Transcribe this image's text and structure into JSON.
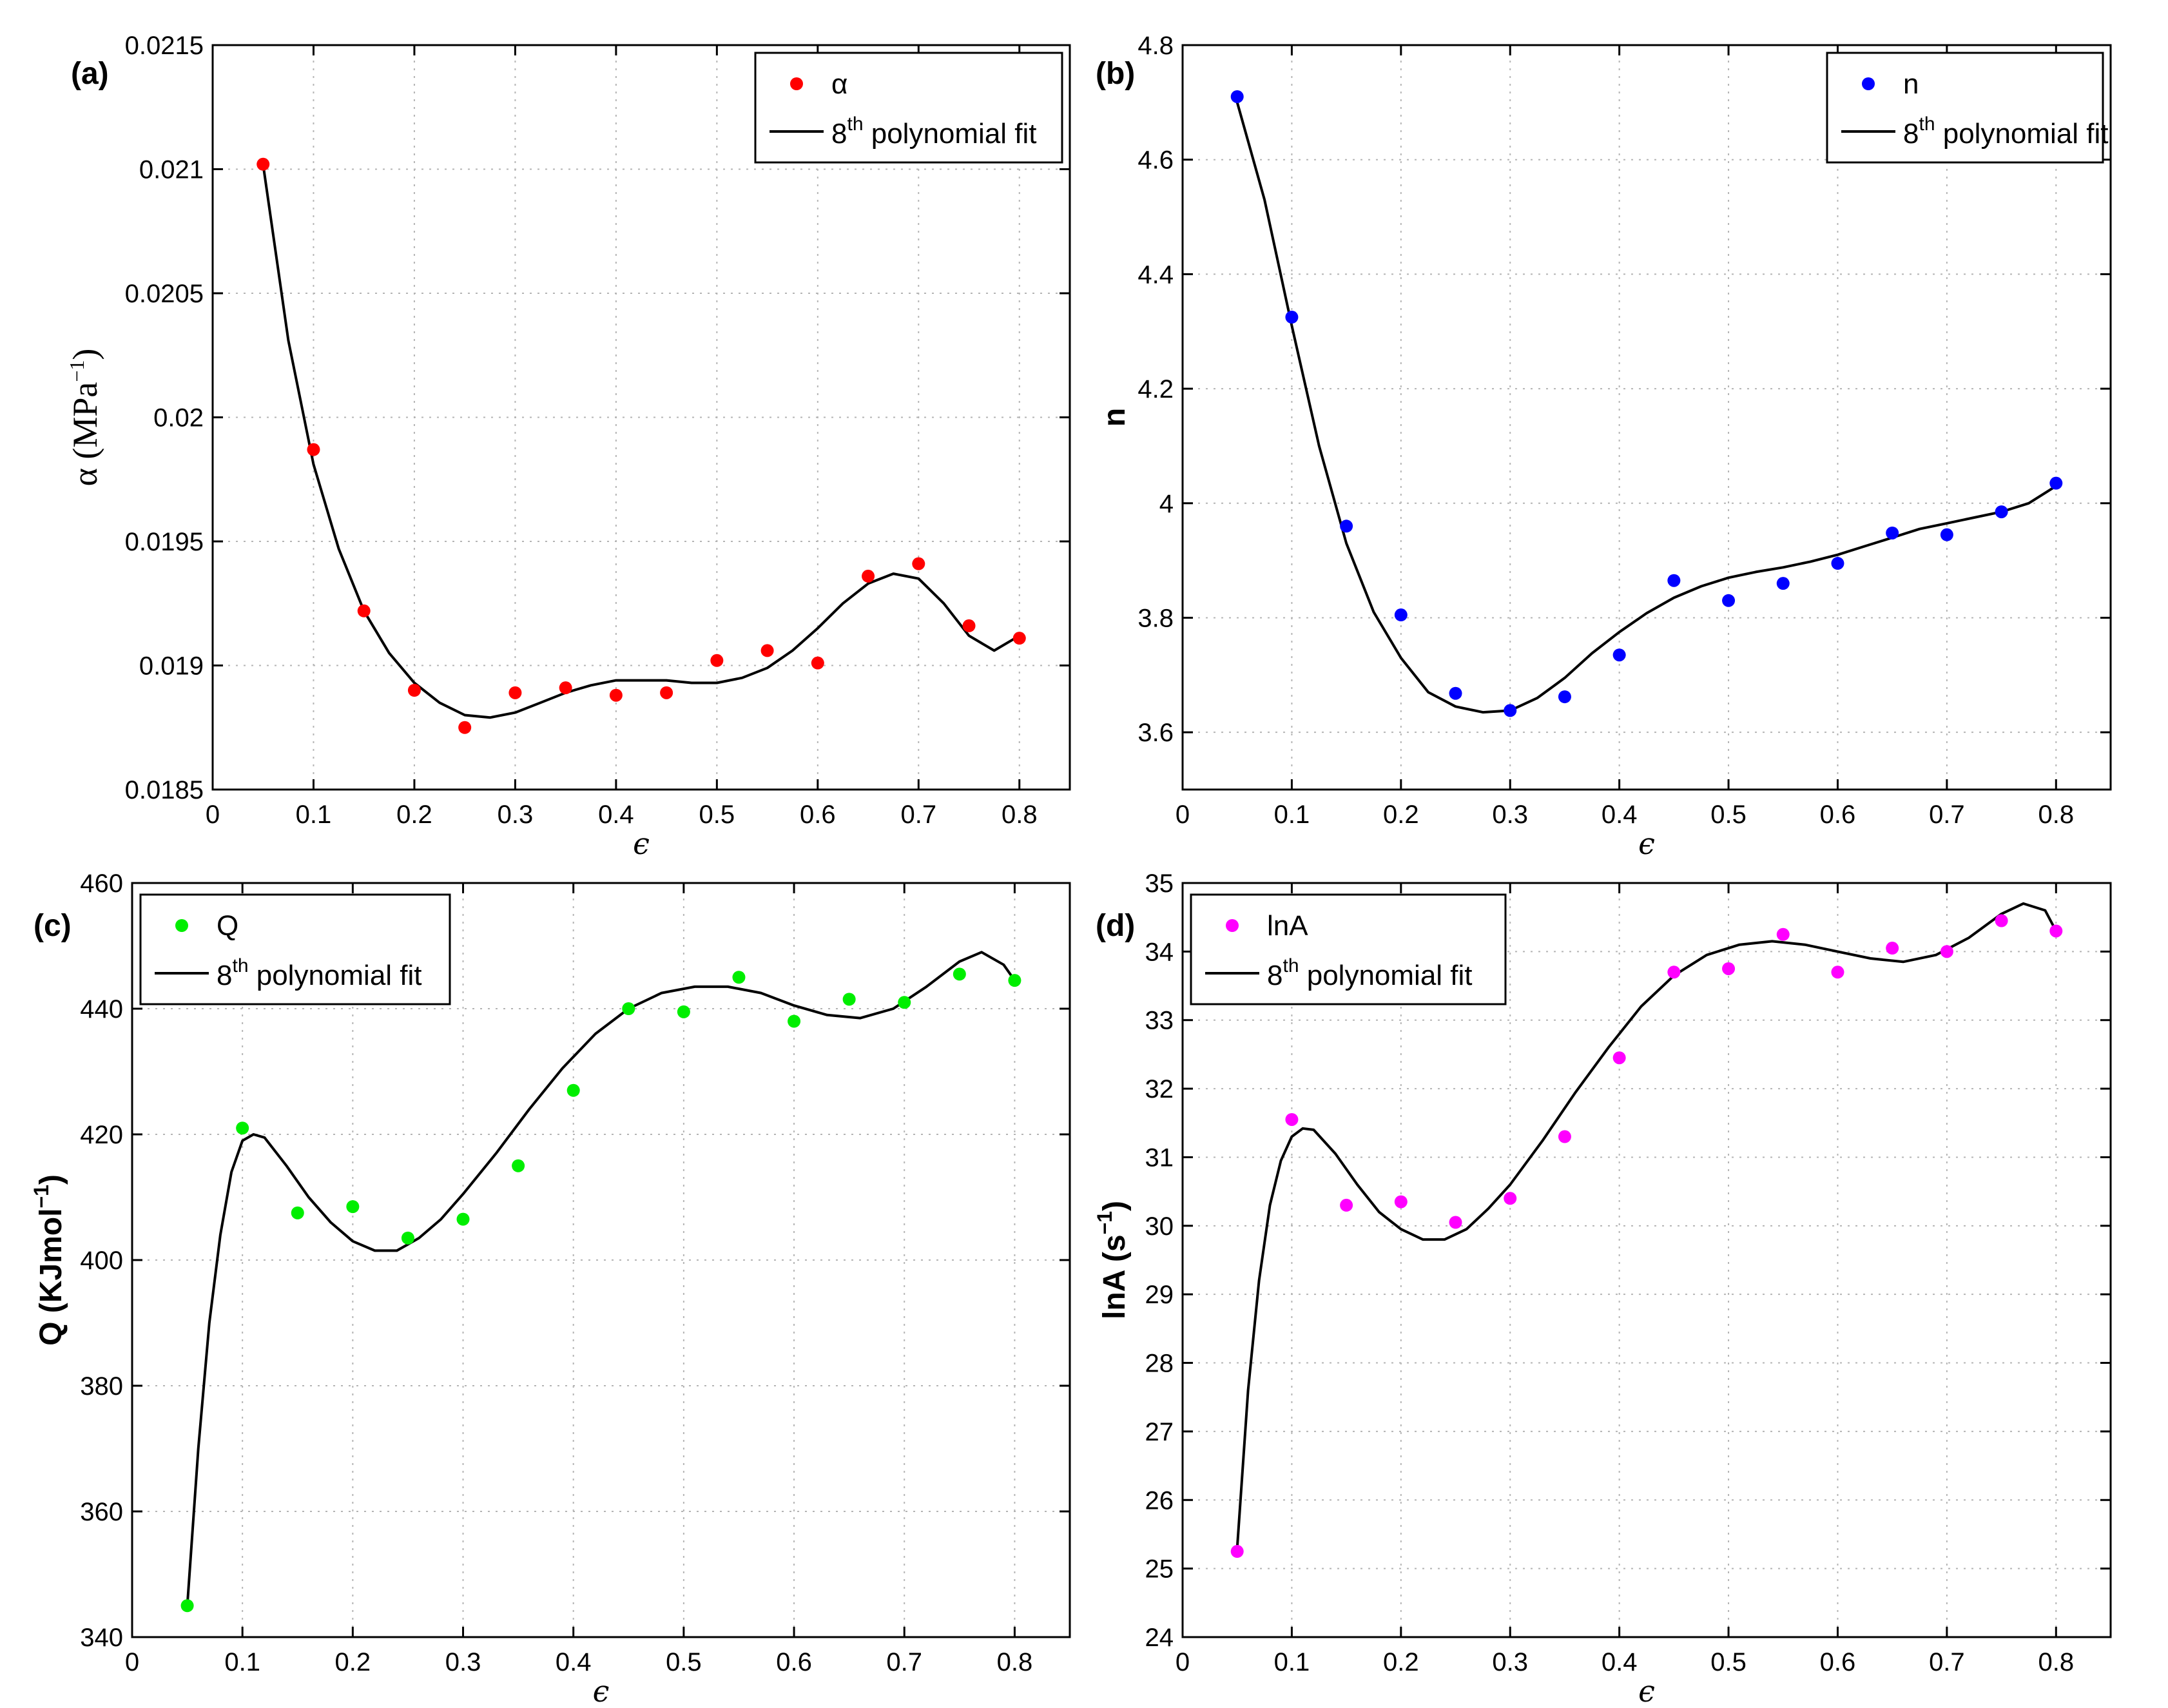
{
  "chart_data": [
    {
      "type": "scatter",
      "panel_label": "(a)",
      "xlabel": "ϵ",
      "ylabel_main": "α (MPa",
      "ylabel_sup": "−1",
      "ylabel_tail": ")",
      "xlim": [
        0,
        0.85
      ],
      "ylim": [
        0.0185,
        0.0215
      ],
      "xticks": [
        0,
        0.1,
        0.2,
        0.3,
        0.4,
        0.5,
        0.6,
        0.7,
        0.8
      ],
      "yticks": [
        0.0185,
        0.019,
        0.0195,
        0.02,
        0.0205,
        0.021,
        0.0215
      ],
      "xtick_labels": [
        "0",
        "0.1",
        "0.2",
        "0.3",
        "0.4",
        "0.5",
        "0.6",
        "0.7",
        "0.8"
      ],
      "ytick_labels": [
        "0.0185",
        "0.019",
        "0.0195",
        "0.02",
        "0.0205",
        "0.021",
        "0.0215"
      ],
      "grid": true,
      "legend_position": "top-right",
      "points_color": "#ff0000",
      "legend_points": "α",
      "legend_fit_pre": "8",
      "legend_fit_sup": "th",
      "legend_fit_post": " polynomial fit",
      "x": [
        0.05,
        0.1,
        0.15,
        0.2,
        0.25,
        0.3,
        0.35,
        0.4,
        0.45,
        0.5,
        0.55,
        0.6,
        0.65,
        0.7,
        0.75,
        0.8
      ],
      "y": [
        0.02102,
        0.01987,
        0.01922,
        0.0189,
        0.01875,
        0.01889,
        0.01891,
        0.01888,
        0.01889,
        0.01902,
        0.01906,
        0.01901,
        0.01936,
        0.01941,
        0.01916,
        0.01911
      ],
      "fit_x": [
        0.05,
        0.075,
        0.1,
        0.125,
        0.15,
        0.175,
        0.2,
        0.225,
        0.25,
        0.275,
        0.3,
        0.325,
        0.35,
        0.375,
        0.4,
        0.425,
        0.45,
        0.475,
        0.5,
        0.525,
        0.55,
        0.575,
        0.6,
        0.625,
        0.65,
        0.675,
        0.7,
        0.725,
        0.75,
        0.775,
        0.8
      ],
      "fit_y": [
        0.02102,
        0.02031,
        0.01981,
        0.01947,
        0.01922,
        0.01905,
        0.01893,
        0.01885,
        0.0188,
        0.01879,
        0.01881,
        0.01885,
        0.01889,
        0.01892,
        0.01894,
        0.01894,
        0.01894,
        0.01893,
        0.01893,
        0.01895,
        0.01899,
        0.01906,
        0.01915,
        0.01925,
        0.01933,
        0.01937,
        0.01935,
        0.01925,
        0.01912,
        0.01906,
        0.01912
      ]
    },
    {
      "type": "scatter",
      "panel_label": "(b)",
      "xlabel": "ϵ",
      "ylabel_main": "n",
      "ylabel_sup": "",
      "ylabel_tail": "",
      "xlim": [
        0,
        0.85
      ],
      "ylim": [
        3.5,
        4.8
      ],
      "xticks": [
        0,
        0.1,
        0.2,
        0.3,
        0.4,
        0.5,
        0.6,
        0.7,
        0.8
      ],
      "yticks": [
        3.6,
        3.8,
        4.0,
        4.2,
        4.4,
        4.6,
        4.8
      ],
      "xtick_labels": [
        "0",
        "0.1",
        "0.2",
        "0.3",
        "0.4",
        "0.5",
        "0.6",
        "0.7",
        "0.8"
      ],
      "ytick_labels": [
        "3.6",
        "3.8",
        "4",
        "4.2",
        "4.4",
        "4.6",
        "4.8"
      ],
      "grid": true,
      "legend_position": "top-right",
      "points_color": "#0000ff",
      "legend_points": "n",
      "legend_fit_pre": "8",
      "legend_fit_sup": "th",
      "legend_fit_post": " polynomial fit",
      "x": [
        0.05,
        0.1,
        0.15,
        0.2,
        0.25,
        0.3,
        0.35,
        0.4,
        0.45,
        0.5,
        0.55,
        0.6,
        0.65,
        0.7,
        0.75,
        0.8
      ],
      "y": [
        4.71,
        4.325,
        3.96,
        3.805,
        3.668,
        3.638,
        3.662,
        3.735,
        3.865,
        3.83,
        3.86,
        3.895,
        3.948,
        3.945,
        3.985,
        4.035
      ],
      "fit_x": [
        0.05,
        0.075,
        0.1,
        0.125,
        0.15,
        0.175,
        0.2,
        0.225,
        0.25,
        0.275,
        0.3,
        0.325,
        0.35,
        0.375,
        0.4,
        0.425,
        0.45,
        0.475,
        0.5,
        0.525,
        0.55,
        0.575,
        0.6,
        0.625,
        0.65,
        0.675,
        0.7,
        0.725,
        0.75,
        0.775,
        0.8
      ],
      "fit_y": [
        4.7,
        4.53,
        4.31,
        4.1,
        3.93,
        3.81,
        3.73,
        3.67,
        3.645,
        3.635,
        3.638,
        3.66,
        3.695,
        3.738,
        3.775,
        3.808,
        3.835,
        3.855,
        3.87,
        3.88,
        3.888,
        3.898,
        3.91,
        3.925,
        3.94,
        3.955,
        3.965,
        3.975,
        3.985,
        4.0,
        4.03
      ]
    },
    {
      "type": "scatter",
      "panel_label": "(c)",
      "xlabel": "ϵ",
      "ylabel_main": "Q (KJmol",
      "ylabel_sup": "−1",
      "ylabel_tail": ")",
      "xlim": [
        0,
        0.85
      ],
      "ylim": [
        340,
        460
      ],
      "xticks": [
        0,
        0.1,
        0.2,
        0.3,
        0.4,
        0.5,
        0.6,
        0.7,
        0.8
      ],
      "yticks": [
        340,
        360,
        380,
        400,
        420,
        440,
        460
      ],
      "xtick_labels": [
        "0",
        "0.1",
        "0.2",
        "0.3",
        "0.4",
        "0.5",
        "0.6",
        "0.7",
        "0.8"
      ],
      "ytick_labels": [
        "340",
        "360",
        "380",
        "400",
        "420",
        "440",
        "460"
      ],
      "grid": true,
      "legend_position": "top-left",
      "points_color": "#00ee00",
      "legend_points": "Q",
      "legend_fit_pre": "8",
      "legend_fit_sup": "th",
      "legend_fit_post": " polynomial fit",
      "x": [
        0.05,
        0.1,
        0.15,
        0.2,
        0.25,
        0.3,
        0.35,
        0.4,
        0.45,
        0.5,
        0.55,
        0.6,
        0.65,
        0.7,
        0.75,
        0.8
      ],
      "y": [
        345,
        421,
        407.5,
        408.5,
        403.5,
        406.5,
        415,
        427,
        440,
        439.5,
        445,
        438,
        441.5,
        441,
        445.5,
        444.5
      ],
      "fit_x": [
        0.05,
        0.06,
        0.07,
        0.08,
        0.09,
        0.1,
        0.11,
        0.12,
        0.14,
        0.16,
        0.18,
        0.2,
        0.22,
        0.24,
        0.26,
        0.28,
        0.3,
        0.33,
        0.36,
        0.39,
        0.42,
        0.45,
        0.48,
        0.51,
        0.54,
        0.57,
        0.6,
        0.63,
        0.66,
        0.69,
        0.72,
        0.75,
        0.77,
        0.79,
        0.8
      ],
      "fit_y": [
        345,
        370,
        390,
        404,
        414,
        419,
        420,
        419.5,
        415,
        410,
        406,
        403,
        401.5,
        401.5,
        403.5,
        406.5,
        410.5,
        417,
        424,
        430.5,
        436,
        440,
        442.5,
        443.5,
        443.5,
        442.5,
        440.5,
        439,
        438.5,
        440,
        443.5,
        447.5,
        449,
        447,
        444.5
      ]
    },
    {
      "type": "scatter",
      "panel_label": "(d)",
      "xlabel": "ϵ",
      "ylabel_main": "lnA (s",
      "ylabel_sup": "−1",
      "ylabel_tail": ")",
      "xlim": [
        0,
        0.85
      ],
      "ylim": [
        24,
        35
      ],
      "xticks": [
        0,
        0.1,
        0.2,
        0.3,
        0.4,
        0.5,
        0.6,
        0.7,
        0.8
      ],
      "yticks": [
        24,
        25,
        26,
        27,
        28,
        29,
        30,
        31,
        32,
        33,
        34,
        35
      ],
      "xtick_labels": [
        "0",
        "0.1",
        "0.2",
        "0.3",
        "0.4",
        "0.5",
        "0.6",
        "0.7",
        "0.8"
      ],
      "ytick_labels": [
        "24",
        "25",
        "26",
        "27",
        "28",
        "29",
        "30",
        "31",
        "32",
        "33",
        "34",
        "35"
      ],
      "grid": true,
      "legend_position": "top-left",
      "points_color": "#ff00ff",
      "legend_points": "lnA",
      "legend_fit_pre": "8",
      "legend_fit_sup": "th",
      "legend_fit_post": " polynomial fit",
      "x": [
        0.05,
        0.1,
        0.15,
        0.2,
        0.25,
        0.3,
        0.35,
        0.4,
        0.45,
        0.5,
        0.55,
        0.6,
        0.65,
        0.7,
        0.75,
        0.8
      ],
      "y": [
        25.25,
        31.55,
        30.3,
        30.35,
        30.05,
        30.4,
        31.3,
        32.45,
        33.7,
        33.75,
        34.25,
        33.7,
        34.05,
        34.0,
        34.45,
        34.3
      ],
      "fit_x": [
        0.05,
        0.06,
        0.07,
        0.08,
        0.09,
        0.1,
        0.11,
        0.12,
        0.14,
        0.16,
        0.18,
        0.2,
        0.22,
        0.24,
        0.26,
        0.28,
        0.3,
        0.33,
        0.36,
        0.39,
        0.42,
        0.45,
        0.48,
        0.51,
        0.54,
        0.57,
        0.6,
        0.63,
        0.66,
        0.69,
        0.72,
        0.75,
        0.77,
        0.79,
        0.8
      ],
      "fit_y": [
        25.3,
        27.6,
        29.2,
        30.3,
        30.95,
        31.3,
        31.42,
        31.4,
        31.05,
        30.6,
        30.2,
        29.95,
        29.8,
        29.8,
        29.95,
        30.25,
        30.6,
        31.25,
        31.95,
        32.6,
        33.2,
        33.65,
        33.95,
        34.1,
        34.15,
        34.1,
        34.0,
        33.9,
        33.85,
        33.95,
        34.2,
        34.55,
        34.7,
        34.6,
        34.3
      ]
    }
  ]
}
